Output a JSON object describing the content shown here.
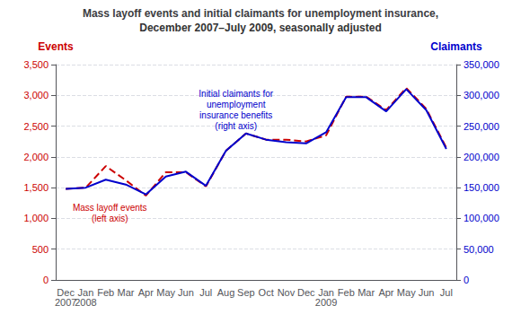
{
  "chart_data": {
    "type": "line",
    "title": "Mass layoff events and initial claimants for unemployment insurance,",
    "subtitle": "December 2007–July 2009, seasonally adjusted",
    "ylabel": "Events",
    "y2label": "Claimants",
    "categories": [
      "Dec",
      "Jan",
      "Feb",
      "Mar",
      "Apr",
      "May",
      "Jun",
      "Jul",
      "Aug",
      "Sep",
      "Oct",
      "Nov",
      "Dec",
      "Jan",
      "Feb",
      "Mar",
      "Apr",
      "May",
      "Jun",
      "Jul"
    ],
    "year_labels": [
      "2007",
      "2008",
      null,
      null,
      null,
      null,
      null,
      null,
      null,
      null,
      null,
      null,
      null,
      "2009",
      null,
      null,
      null,
      null,
      null,
      null
    ],
    "series": [
      {
        "color": "#cc0000",
        "line_style": "dashed",
        "marker": "none",
        "values": [
          1480,
          1500,
          1850,
          1620,
          1370,
          1750,
          1750,
          1520,
          2100,
          2380,
          2280,
          2280,
          2250,
          2350,
          2980,
          2980,
          2760,
          3120,
          2780,
          2150
        ]
      },
      {
        "color": "#0000cc",
        "line_style": "solid",
        "marker": "none",
        "axis": "y2",
        "values": [
          148000,
          150000,
          163000,
          155000,
          139000,
          168000,
          176000,
          153000,
          210000,
          238000,
          228000,
          224000,
          222000,
          240000,
          297000,
          297000,
          274000,
          310000,
          276000,
          213000
        ]
      }
    ],
    "ylim": [
      0,
      3500
    ],
    "yticks": [
      0,
      500,
      {
        "value": 1000,
        "label": "1,000"
      },
      {
        "value": 1500,
        "label": "1,500"
      },
      {
        "value": 2000,
        "label": "2,000"
      },
      {
        "value": 2500,
        "label": "2,500"
      },
      {
        "value": 3000,
        "label": "3,000"
      },
      {
        "value": 3500,
        "label": "3,500"
      }
    ],
    "y2lim": [
      0,
      350000
    ],
    "y2ticks": [
      0,
      {
        "value": 50000,
        "label": "50,000"
      },
      {
        "value": 100000,
        "label": "100,000"
      },
      {
        "value": 150000,
        "label": "150,000"
      },
      {
        "value": 200000,
        "label": "200,000"
      },
      {
        "value": 250000,
        "label": "250,000"
      },
      {
        "value": 300000,
        "label": "300,000"
      },
      {
        "value": 350000,
        "label": "350,000"
      }
    ],
    "grid": true,
    "annotations": [
      {
        "text": "Initial claimants for\nunemployment\ninsurance benefits\n(right axis)",
        "color": "#0000cc"
      },
      {
        "text": "Mass layoff events\n(left axis)",
        "color": "#cc0000"
      }
    ]
  }
}
